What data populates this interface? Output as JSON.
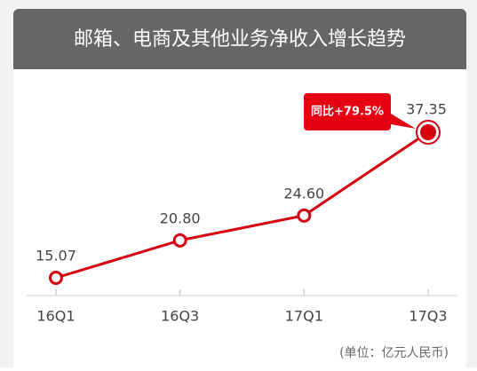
{
  "chart_data": {
    "type": "line",
    "title": "邮箱、电商及其他业务净收入增长趋势",
    "categories": [
      "16Q1",
      "16Q3",
      "17Q1",
      "17Q3"
    ],
    "series": [
      {
        "color": "#d7000f",
        "values": [
          15.07,
          20.8,
          24.6,
          37.35
        ],
        "value_labels": [
          "15.07",
          "20.80",
          "24.60",
          "37.35"
        ]
      }
    ],
    "annotation": "同比+79.5%",
    "note": "(单位：亿元人民币)"
  }
}
